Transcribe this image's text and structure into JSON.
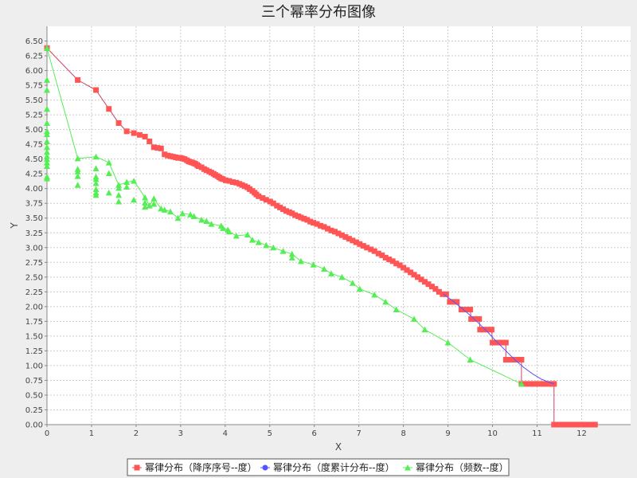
{
  "chart_data": {
    "type": "scatter",
    "title": "三个幂率分布图像",
    "xlabel": "X",
    "ylabel": "Y",
    "xlim": [
      0,
      13.1
    ],
    "ylim": [
      0,
      6.75
    ],
    "x_ticks": [
      "0",
      "1",
      "2",
      "3",
      "4",
      "5",
      "6",
      "7",
      "8",
      "9",
      "10",
      "11",
      "12"
    ],
    "y_ticks": [
      "0.00",
      "0.25",
      "0.50",
      "0.75",
      "1.00",
      "1.25",
      "1.50",
      "1.75",
      "2.00",
      "2.25",
      "2.50",
      "2.75",
      "3.00",
      "3.25",
      "3.50",
      "3.75",
      "4.00",
      "4.25",
      "4.50",
      "4.75",
      "5.00",
      "5.25",
      "5.50",
      "5.75",
      "6.00",
      "6.25",
      "6.50"
    ],
    "grid": true,
    "legend_position": "bottom",
    "series": [
      {
        "name": "幂律分布（降序序号--度）",
        "color": "#ff5555",
        "line_color": "#cc4466",
        "marker": "square",
        "points": [
          [
            0,
            6.38
          ],
          [
            0.69,
            5.84
          ],
          [
            1.1,
            5.67
          ],
          [
            1.39,
            5.35
          ],
          [
            1.61,
            5.11
          ],
          [
            1.79,
            4.97
          ],
          [
            1.95,
            4.94
          ],
          [
            2.08,
            4.91
          ],
          [
            2.2,
            4.88
          ],
          [
            2.3,
            4.8
          ],
          [
            2.4,
            4.7
          ],
          [
            2.48,
            4.69
          ],
          [
            2.56,
            4.68
          ],
          [
            2.64,
            4.58
          ],
          [
            2.71,
            4.56
          ],
          [
            2.77,
            4.55
          ],
          [
            2.83,
            4.54
          ],
          [
            2.89,
            4.53
          ],
          [
            2.94,
            4.52
          ],
          [
            3.0,
            4.52
          ],
          [
            3.04,
            4.51
          ],
          [
            3.09,
            4.5
          ],
          [
            3.14,
            4.48
          ],
          [
            3.18,
            4.46
          ],
          [
            3.22,
            4.45
          ],
          [
            3.26,
            4.44
          ],
          [
            3.3,
            4.43
          ],
          [
            3.33,
            4.42
          ],
          [
            3.37,
            4.4
          ],
          [
            3.4,
            4.38
          ],
          [
            3.47,
            4.36
          ],
          [
            3.53,
            4.33
          ],
          [
            3.58,
            4.31
          ],
          [
            3.64,
            4.29
          ],
          [
            3.69,
            4.27
          ],
          [
            3.74,
            4.25
          ],
          [
            3.78,
            4.23
          ],
          [
            3.83,
            4.21
          ],
          [
            3.87,
            4.19
          ],
          [
            3.91,
            4.17
          ],
          [
            3.95,
            4.16
          ],
          [
            4.01,
            4.14
          ],
          [
            4.09,
            4.13
          ],
          [
            4.17,
            4.11
          ],
          [
            4.25,
            4.1
          ],
          [
            4.32,
            4.08
          ],
          [
            4.38,
            4.06
          ],
          [
            4.44,
            4.04
          ],
          [
            4.5,
            4.02
          ],
          [
            4.55,
            3.99
          ],
          [
            4.61,
            3.96
          ],
          [
            4.66,
            3.93
          ],
          [
            4.7,
            3.9
          ],
          [
            4.75,
            3.87
          ],
          [
            4.84,
            3.84
          ],
          [
            4.92,
            3.81
          ],
          [
            5.01,
            3.78
          ],
          [
            5.08,
            3.75
          ],
          [
            5.16,
            3.71
          ],
          [
            5.23,
            3.68
          ],
          [
            5.3,
            3.65
          ],
          [
            5.37,
            3.62
          ],
          [
            5.44,
            3.6
          ],
          [
            5.5,
            3.58
          ],
          [
            5.57,
            3.55
          ],
          [
            5.64,
            3.53
          ],
          [
            5.7,
            3.51
          ],
          [
            5.77,
            3.49
          ],
          [
            5.84,
            3.47
          ],
          [
            5.91,
            3.44
          ],
          [
            5.98,
            3.42
          ],
          [
            6.06,
            3.4
          ],
          [
            6.14,
            3.37
          ],
          [
            6.22,
            3.35
          ],
          [
            6.3,
            3.32
          ],
          [
            6.38,
            3.29
          ],
          [
            6.46,
            3.27
          ],
          [
            6.54,
            3.24
          ],
          [
            6.62,
            3.21
          ],
          [
            6.7,
            3.18
          ],
          [
            6.78,
            3.15
          ],
          [
            6.86,
            3.12
          ],
          [
            6.94,
            3.09
          ],
          [
            7.02,
            3.06
          ],
          [
            7.1,
            3.03
          ],
          [
            7.18,
            3.0
          ],
          [
            7.27,
            2.97
          ],
          [
            7.35,
            2.94
          ],
          [
            7.44,
            2.9
          ],
          [
            7.52,
            2.87
          ],
          [
            7.6,
            2.83
          ],
          [
            7.68,
            2.8
          ],
          [
            7.76,
            2.77
          ],
          [
            7.84,
            2.73
          ],
          [
            7.92,
            2.7
          ],
          [
            8.0,
            2.66
          ],
          [
            8.08,
            2.62
          ],
          [
            8.16,
            2.58
          ],
          [
            8.24,
            2.54
          ],
          [
            8.32,
            2.5
          ],
          [
            8.4,
            2.46
          ],
          [
            8.48,
            2.42
          ],
          [
            8.56,
            2.38
          ],
          [
            8.64,
            2.34
          ],
          [
            8.72,
            2.3
          ],
          [
            8.8,
            2.25
          ],
          [
            8.88,
            2.21
          ],
          [
            8.96,
            2.21
          ],
          [
            9.04,
            2.08
          ],
          [
            9.12,
            2.08
          ],
          [
            9.2,
            2.08
          ],
          [
            9.3,
            1.95
          ],
          [
            9.4,
            1.95
          ],
          [
            9.5,
            1.95
          ],
          [
            9.52,
            1.79
          ],
          [
            9.6,
            1.79
          ],
          [
            9.7,
            1.79
          ],
          [
            9.72,
            1.61
          ],
          [
            9.8,
            1.61
          ],
          [
            9.9,
            1.61
          ],
          [
            9.98,
            1.61
          ],
          [
            10.0,
            1.39
          ],
          [
            10.1,
            1.39
          ],
          [
            10.2,
            1.39
          ],
          [
            10.3,
            1.39
          ],
          [
            10.3,
            1.1
          ],
          [
            10.4,
            1.1
          ],
          [
            10.5,
            1.1
          ],
          [
            10.6,
            1.1
          ],
          [
            10.65,
            1.1
          ],
          [
            10.65,
            0.69
          ],
          [
            10.75,
            0.69
          ],
          [
            10.85,
            0.69
          ],
          [
            10.95,
            0.69
          ],
          [
            11.05,
            0.69
          ],
          [
            11.15,
            0.69
          ],
          [
            11.25,
            0.69
          ],
          [
            11.35,
            0.69
          ],
          [
            11.38,
            0.69
          ],
          [
            11.38,
            0.0
          ],
          [
            11.5,
            0.0
          ],
          [
            11.6,
            0.0
          ],
          [
            11.7,
            0.0
          ],
          [
            11.8,
            0.0
          ],
          [
            11.9,
            0.0
          ],
          [
            12.0,
            0.0
          ],
          [
            12.1,
            0.0
          ],
          [
            12.2,
            0.0
          ],
          [
            12.3,
            0.0
          ]
        ]
      },
      {
        "name": "幂律分布（度累计分布--度）",
        "color": "#5555ff",
        "line_color": "#5555ff",
        "marker": "circle",
        "points": [
          [
            8.9,
            2.21
          ],
          [
            9.1,
            2.1
          ],
          [
            9.3,
            1.98
          ],
          [
            9.5,
            1.85
          ],
          [
            9.7,
            1.71
          ],
          [
            9.9,
            1.56
          ],
          [
            10.1,
            1.4
          ],
          [
            10.3,
            1.25
          ],
          [
            10.5,
            1.1
          ],
          [
            10.7,
            0.97
          ],
          [
            10.9,
            0.86
          ],
          [
            11.1,
            0.77
          ],
          [
            11.3,
            0.71
          ],
          [
            11.38,
            0.69
          ]
        ]
      },
      {
        "name": "幂律分布（频数--度）",
        "color": "#55ee55",
        "line_color": "#55ee55",
        "marker": "triangle",
        "points": [
          [
            0,
            6.38
          ],
          [
            0,
            5.84
          ],
          [
            0,
            5.67
          ],
          [
            0,
            5.35
          ],
          [
            0,
            5.11
          ],
          [
            0,
            4.97
          ],
          [
            0,
            4.92
          ],
          [
            0,
            4.8
          ],
          [
            0,
            4.7
          ],
          [
            0,
            4.62
          ],
          [
            0,
            4.55
          ],
          [
            0,
            4.5
          ],
          [
            0,
            4.44
          ],
          [
            0,
            4.38
          ],
          [
            0,
            4.2
          ],
          [
            0,
            4.17
          ],
          [
            0.69,
            4.51
          ],
          [
            0.69,
            4.33
          ],
          [
            0.69,
            4.29
          ],
          [
            0.69,
            4.21
          ],
          [
            0.69,
            4.06
          ],
          [
            1.1,
            4.54
          ],
          [
            1.1,
            4.34
          ],
          [
            1.1,
            4.2
          ],
          [
            1.1,
            4.16
          ],
          [
            1.1,
            4.09
          ],
          [
            1.1,
            3.99
          ],
          [
            1.1,
            3.93
          ],
          [
            1.1,
            3.89
          ],
          [
            1.39,
            4.44
          ],
          [
            1.39,
            4.26
          ],
          [
            1.39,
            3.93
          ],
          [
            1.61,
            4.06
          ],
          [
            1.61,
            4.01
          ],
          [
            1.61,
            3.89
          ],
          [
            1.61,
            3.78
          ],
          [
            1.79,
            4.11
          ],
          [
            1.79,
            4.03
          ],
          [
            1.95,
            4.13
          ],
          [
            1.95,
            3.81
          ],
          [
            2.2,
            3.85
          ],
          [
            2.2,
            3.76
          ],
          [
            2.2,
            3.69
          ],
          [
            2.3,
            3.71
          ],
          [
            2.4,
            3.83
          ],
          [
            2.4,
            3.74
          ],
          [
            2.56,
            3.66
          ],
          [
            2.64,
            3.64
          ],
          [
            2.77,
            3.61
          ],
          [
            2.94,
            3.5
          ],
          [
            3.04,
            3.58
          ],
          [
            3.22,
            3.56
          ],
          [
            3.3,
            3.53
          ],
          [
            3.47,
            3.47
          ],
          [
            3.58,
            3.45
          ],
          [
            3.69,
            3.4
          ],
          [
            3.91,
            3.37
          ],
          [
            3.95,
            3.33
          ],
          [
            4.06,
            3.3
          ],
          [
            4.09,
            3.27
          ],
          [
            4.25,
            3.2
          ],
          [
            4.5,
            3.22
          ],
          [
            4.61,
            3.13
          ],
          [
            4.75,
            3.09
          ],
          [
            4.92,
            3.04
          ],
          [
            5.08,
            3.0
          ],
          [
            5.3,
            2.94
          ],
          [
            5.5,
            2.89
          ],
          [
            5.5,
            2.83
          ],
          [
            5.7,
            2.77
          ],
          [
            5.98,
            2.71
          ],
          [
            6.22,
            2.64
          ],
          [
            6.38,
            2.56
          ],
          [
            6.62,
            2.5
          ],
          [
            6.86,
            2.4
          ],
          [
            7.02,
            2.3
          ],
          [
            7.35,
            2.2
          ],
          [
            7.6,
            2.08
          ],
          [
            7.84,
            1.95
          ],
          [
            8.24,
            1.79
          ],
          [
            8.48,
            1.61
          ],
          [
            9.0,
            1.39
          ],
          [
            9.5,
            1.1
          ],
          [
            10.65,
            0.69
          ]
        ]
      }
    ]
  }
}
